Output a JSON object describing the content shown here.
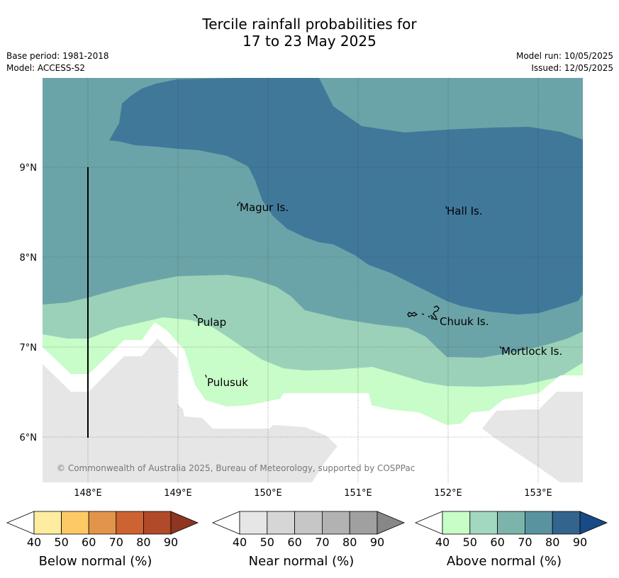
{
  "title_line1": "Tercile rainfall probabilities for",
  "title_line2": "17 to 23 May 2025",
  "base_period": "Base period: 1981-2018",
  "model": "Model: ACCESS-S2",
  "model_run": "Model run: 10/05/2025",
  "issued": "Issued: 12/05/2025",
  "copyright": "© Commonwealth of Australia 2025, Bureau of Meteorology, supported by COSPPac",
  "lon_ticks": [
    "148°E",
    "149°E",
    "150°E",
    "151°E",
    "152°E",
    "153°E"
  ],
  "lat_ticks": [
    "9°N",
    "8°N",
    "7°N",
    "6°N"
  ],
  "places": [
    "Magur Is.",
    "Hall Is.",
    "Pulap",
    "Chuuk Is.",
    "Mortlock Is.",
    "Pulusuk"
  ],
  "colorbars": [
    {
      "label": "Below normal (%)",
      "ticks": [
        "40",
        "50",
        "60",
        "70",
        "80",
        "90"
      ],
      "colors": [
        "#ffffff",
        "#feeca0",
        "#fdc965",
        "#e1944a",
        "#cd6333",
        "#b14a28",
        "#8e3621"
      ]
    },
    {
      "label": "Near normal (%)",
      "ticks": [
        "40",
        "50",
        "60",
        "70",
        "80",
        "90"
      ],
      "colors": [
        "#ffffff",
        "#e6e6e6",
        "#d6d6d6",
        "#c6c6c6",
        "#b2b2b2",
        "#a0a0a0",
        "#878787"
      ]
    },
    {
      "label": "Above normal (%)",
      "ticks": [
        "40",
        "50",
        "60",
        "70",
        "80",
        "90"
      ],
      "colors": [
        "#ffffff",
        "#c7fdc7",
        "#a2d8bf",
        "#7cb4ab",
        "#5a93a0",
        "#33648d",
        "#174a86"
      ]
    }
  ],
  "map_colors": {
    "above_80": "#40789a",
    "above_70": "#6ba4a8",
    "above_60": "#9bd1b8",
    "above_50": "#c8fcc8",
    "near_50": "#e6e6e6",
    "no_data": "#ffffff"
  }
}
